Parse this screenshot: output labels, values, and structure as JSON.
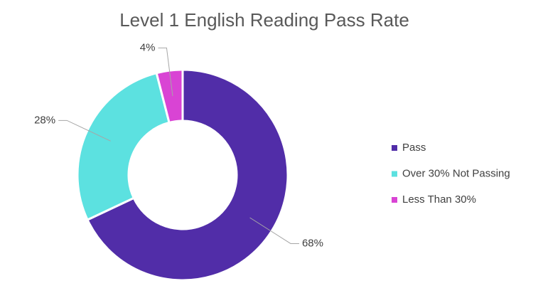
{
  "chart_data": {
    "type": "donut",
    "title": "Level 1 English Reading Pass Rate",
    "categories": [
      "Pass",
      "Over 30% Not Passing",
      "Less Than 30%"
    ],
    "values": [
      68,
      28,
      4
    ],
    "value_labels": [
      "68%",
      "28%",
      "4%"
    ],
    "colors": [
      "#512DA8",
      "#5CE1E0",
      "#D944D4"
    ],
    "legend": "right"
  }
}
